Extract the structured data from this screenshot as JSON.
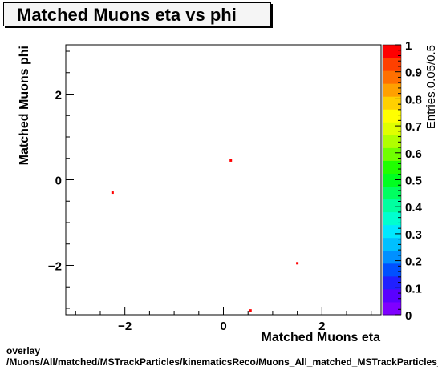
{
  "title": "Matched Muons eta vs phi",
  "footer": {
    "line1": "overlay",
    "line2": "/Muons/All/matched/MSTrackParticles/kinematicsReco/Muons_All_matched_MSTrackParticles_kinematicsReco_eta_phi"
  },
  "chart_data": {
    "type": "heatmap",
    "title": "Matched Muons eta vs phi",
    "xlabel": "Matched Muons eta",
    "ylabel": "Matched Muons phi",
    "zlabel": "Entries.0.05/0.5",
    "xlim": [
      -3.2,
      3.2
    ],
    "ylim": [
      -3.15,
      3.15
    ],
    "zlim": [
      0,
      1
    ],
    "x_ticks": [
      -2,
      0,
      2
    ],
    "x_tick_labels": [
      "−2",
      "0",
      "2"
    ],
    "y_ticks": [
      -2,
      0,
      2
    ],
    "y_tick_labels": [
      "−2",
      "0",
      "2"
    ],
    "z_ticks": [
      0,
      0.1,
      0.2,
      0.3,
      0.4,
      0.5,
      0.6,
      0.7,
      0.8,
      0.9,
      1
    ],
    "z_tick_labels": [
      "0",
      "0.1",
      "0.2",
      "0.3",
      "0.4",
      "0.5",
      "0.6",
      "0.7",
      "0.8",
      "0.9",
      "1"
    ],
    "points": [
      {
        "x": -2.25,
        "y": -0.3,
        "z": 1
      },
      {
        "x": 0.15,
        "y": 0.45,
        "z": 1
      },
      {
        "x": 1.5,
        "y": -1.95,
        "z": 1
      },
      {
        "x": 0.55,
        "y": -3.05,
        "z": 1
      }
    ],
    "palette": [
      "#7f00ff",
      "#5a00ff",
      "#2020ff",
      "#0050ff",
      "#0090ff",
      "#00c0ff",
      "#00e8ff",
      "#00ffd0",
      "#00ffa0",
      "#00ff60",
      "#00ff20",
      "#20ff00",
      "#70ff00",
      "#b0ff00",
      "#e0ff00",
      "#ffff00",
      "#ffd000",
      "#ffa000",
      "#ff7000",
      "#ff4000",
      "#ff0000"
    ]
  }
}
